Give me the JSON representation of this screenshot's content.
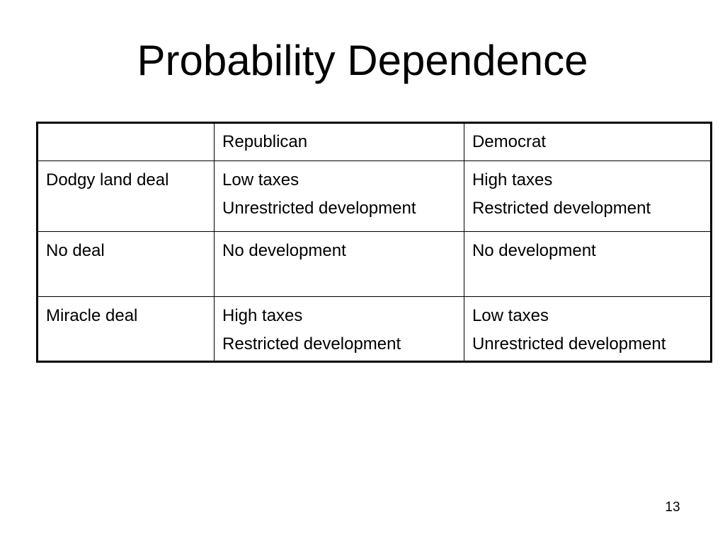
{
  "slide": {
    "title": "Probability Dependence",
    "page_number": "13"
  },
  "table": {
    "header": {
      "blank": "",
      "col1": "Republican",
      "col2": "Democrat"
    },
    "rows": [
      {
        "label": "Dodgy land deal",
        "republican": [
          "Low taxes",
          "Unrestricted development"
        ],
        "democrat": [
          "High taxes",
          "Restricted development"
        ]
      },
      {
        "label": "No deal",
        "republican": [
          "No development"
        ],
        "democrat": [
          "No development"
        ]
      },
      {
        "label": "Miracle deal",
        "republican": [
          "High taxes",
          "Restricted development"
        ],
        "democrat": [
          "Low taxes",
          "Unrestricted development"
        ]
      }
    ]
  }
}
